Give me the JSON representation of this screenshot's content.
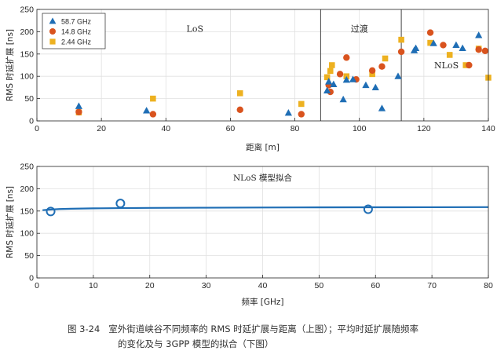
{
  "chart_data": [
    {
      "type": "scatter",
      "xlabel": "距离 [m]",
      "ylabel": "RMS 时延扩展 [ns]",
      "xlim": [
        0,
        140
      ],
      "ylim": [
        0,
        250
      ],
      "xticks": [
        0,
        20,
        40,
        60,
        80,
        100,
        120,
        140
      ],
      "yticks": [
        0,
        50,
        100,
        150,
        200,
        250
      ],
      "grid": true,
      "legend_position": "top-left",
      "region_labels": [
        {
          "text": "LoS",
          "x": 49,
          "y": 207
        },
        {
          "text": "过渡",
          "x": 100,
          "y": 207
        },
        {
          "text": "NLoS",
          "x": 127,
          "y": 125
        }
      ],
      "region_boundaries": [
        88,
        113
      ],
      "series": [
        {
          "name": "58.7 GHz",
          "marker": "triangle",
          "color": "#1f6eb5",
          "x": [
            13,
            34,
            78,
            90,
            90.5,
            92,
            95,
            96,
            98,
            102,
            105,
            107,
            112,
            117,
            117.5,
            123,
            130,
            132,
            137
          ],
          "y": [
            33,
            23,
            18,
            68,
            88,
            82,
            48,
            92,
            93,
            80,
            75,
            28,
            100,
            158,
            163,
            174,
            170,
            163,
            192
          ]
        },
        {
          "name": "14.8 GHz",
          "marker": "circle",
          "color": "#d9531e",
          "x": [
            13,
            36,
            63,
            82,
            90.5,
            91,
            94,
            96,
            99,
            104,
            107,
            113,
            122,
            126,
            134,
            137,
            139
          ],
          "y": [
            20,
            15,
            25,
            15,
            80,
            65,
            105,
            142,
            93,
            113,
            122,
            155,
            198,
            170,
            125,
            160,
            157
          ]
        },
        {
          "name": "2.44 GHz",
          "marker": "square",
          "color": "#edb120",
          "x": [
            13,
            36,
            63,
            82,
            90,
            91,
            91.5,
            96,
            104,
            108,
            113,
            122,
            128,
            133,
            137,
            140
          ],
          "y": [
            19,
            50,
            62,
            38,
            98,
            112,
            125,
            100,
            105,
            140,
            182,
            175,
            148,
            125,
            162,
            97
          ]
        }
      ]
    },
    {
      "type": "line",
      "title": "NLoS 模型拟合",
      "xlabel": "频率 [GHz]",
      "ylabel": "RMS 时延扩展 [ns]",
      "xlim": [
        0,
        80
      ],
      "ylim": [
        0,
        250
      ],
      "xticks": [
        0,
        10,
        20,
        30,
        40,
        50,
        60,
        70,
        80
      ],
      "yticks": [
        0,
        50,
        100,
        150,
        200,
        250
      ],
      "grid": true,
      "series": [
        {
          "marker": "circle-open",
          "color": "#1f6eb5",
          "x": [
            2.44,
            14.8,
            58.7
          ],
          "y": [
            149,
            167,
            154
          ]
        },
        {
          "marker": "line",
          "color": "#1f6eb5",
          "x": [
            1,
            2,
            4,
            6,
            10,
            15,
            20,
            30,
            40,
            50,
            60,
            70,
            80
          ],
          "y": [
            152,
            153,
            154.5,
            155.2,
            156,
            156.6,
            157,
            157.5,
            157.9,
            158.2,
            158.4,
            158.6,
            158.8
          ]
        }
      ]
    }
  ],
  "caption": {
    "figure_number": "图 3-24",
    "line1": "室外街道峡谷不同频率的 RMS 时延扩展与距离（上图）；平均时延扩展随频率",
    "line2": "的变化及与 3GPP 模型的拟合（下图）"
  }
}
